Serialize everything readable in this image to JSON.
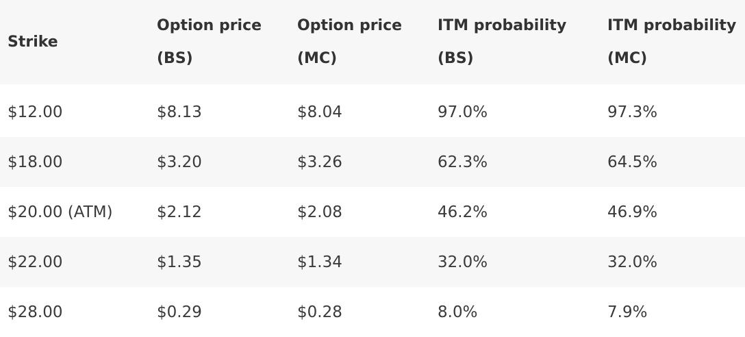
{
  "table": {
    "headers": [
      [
        "Strike"
      ],
      [
        "Option price",
        "(BS)"
      ],
      [
        "Option price",
        "(MC)"
      ],
      [
        "ITM probability",
        "(BS)"
      ],
      [
        "ITM probability",
        "(MC)"
      ]
    ],
    "rows": [
      [
        "$12.00",
        "$8.13",
        "$8.04",
        "97.0%",
        "97.3%"
      ],
      [
        "$18.00",
        "$3.20",
        "$3.26",
        "62.3%",
        "64.5%"
      ],
      [
        "$20.00 (ATM)",
        "$2.12",
        "$2.08",
        "46.2%",
        "46.9%"
      ],
      [
        "$22.00",
        "$1.35",
        "$1.34",
        "32.0%",
        "32.0%"
      ],
      [
        "$28.00",
        "$0.29",
        "$0.28",
        "8.0%",
        "7.9%"
      ]
    ]
  }
}
